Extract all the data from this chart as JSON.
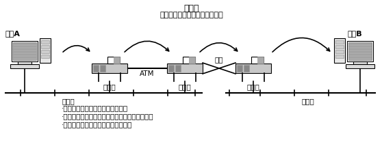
{
  "title_line1": "路由器",
  "title_line2": "（根据路由选择发送分组报文）",
  "host_a_label": "主机A",
  "host_b_label": "主机B",
  "ethernet_left": "以太网",
  "ethernet_right": "以太网",
  "router1_label": "路由器",
  "router2_label": "路由器",
  "router3_label": "路由器",
  "atm_label": "ATM",
  "leased_label": "专线",
  "bullet1": "·路由器是连接网络与网络的设备。",
  "bullet2": "·可以将分组报文发送给另一个目标路由器地址。",
  "bullet3": "·基本上可以连接任意两个数据链路。",
  "bg_color": "#ffffff",
  "fg_color": "#000000",
  "router_body_fill": "#c8c8c8",
  "router_stripe_fill": "#888888",
  "router_top_fill": "#ffffff",
  "router_top_right_fill": "#999999",
  "comp_screen_fill": "#aaaaaa",
  "comp_body_fill": "#e0e0e0",
  "comp_kbd_fill": "#e8e8e8"
}
